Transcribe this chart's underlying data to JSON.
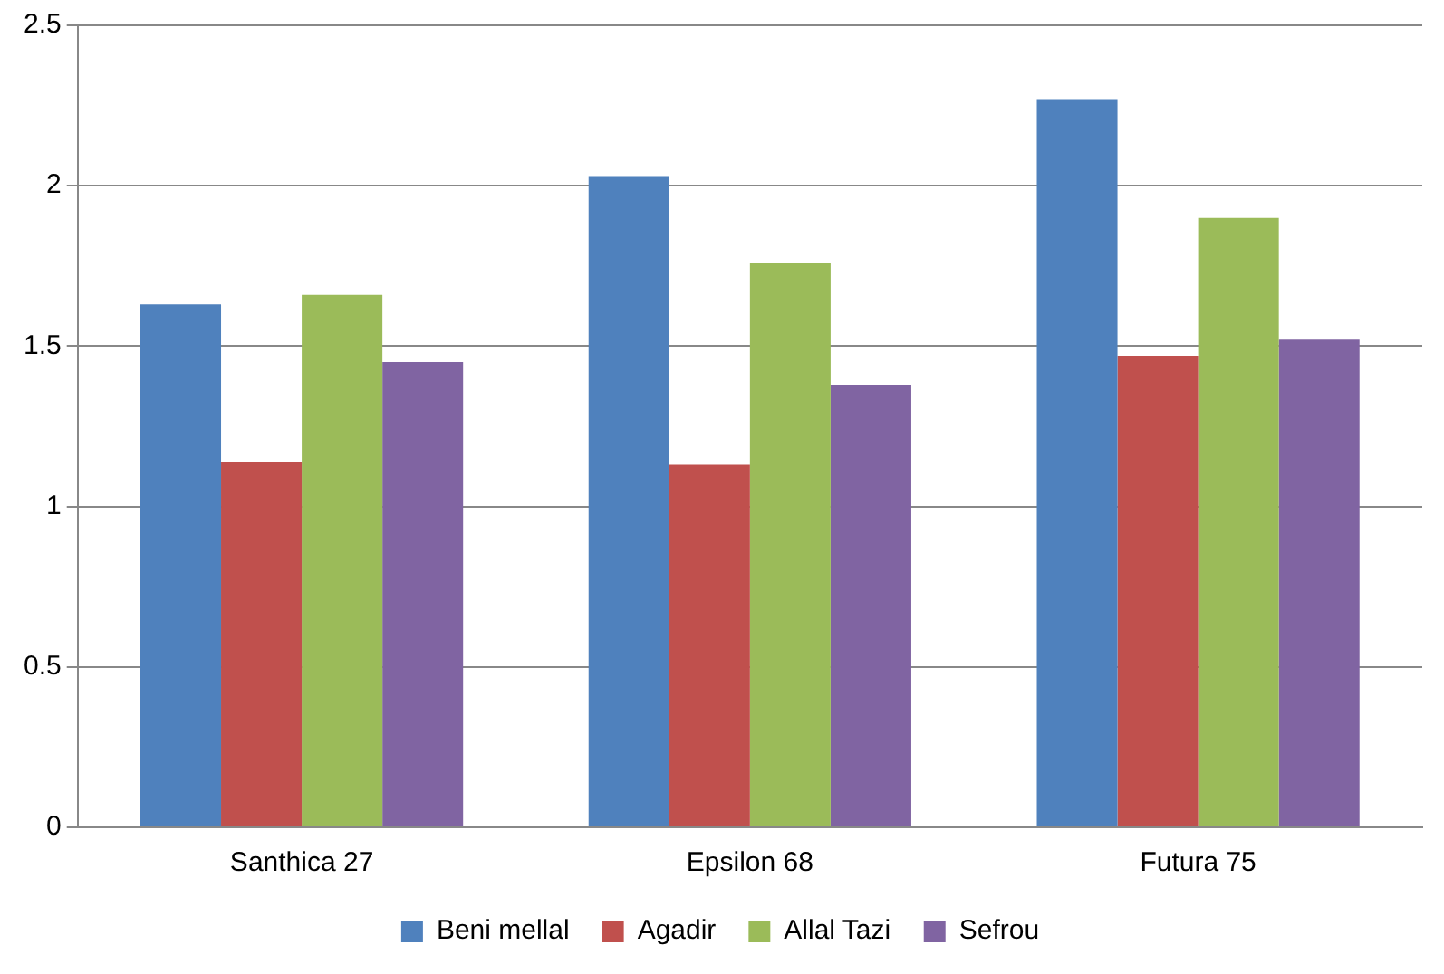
{
  "chart_data": {
    "type": "bar",
    "categories": [
      "Santhica 27",
      "Epsilon 68",
      "Futura 75"
    ],
    "series": [
      {
        "name": "Beni mellal",
        "color": "#4f81bd",
        "values": [
          1.63,
          2.03,
          2.27
        ]
      },
      {
        "name": "Agadir",
        "color": "#c0504d",
        "values": [
          1.14,
          1.13,
          1.47
        ]
      },
      {
        "name": "Allal Tazi",
        "color": "#9bbb59",
        "values": [
          1.66,
          1.76,
          1.9
        ]
      },
      {
        "name": "Sefrou",
        "color": "#8064a2",
        "values": [
          1.45,
          1.38,
          1.52
        ]
      }
    ],
    "ylim": [
      0,
      2.5
    ],
    "yticks": [
      0,
      0.5,
      1,
      1.5,
      2,
      2.5
    ],
    "grid": "y",
    "legend": "bottom"
  }
}
